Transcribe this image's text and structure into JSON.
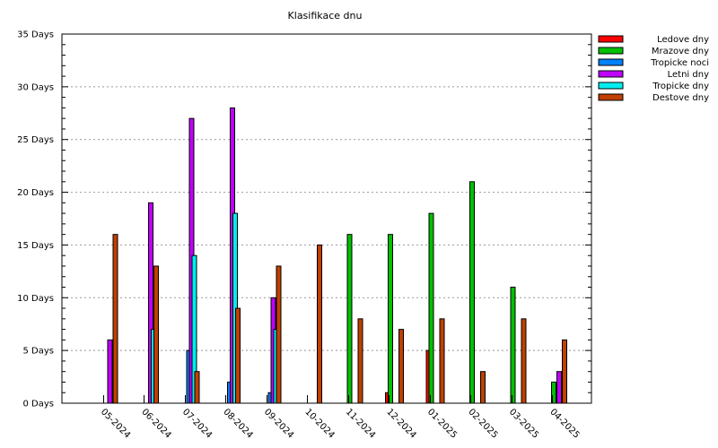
{
  "chart_data": {
    "type": "bar",
    "title": "Klasifikace dnu",
    "xlabel": "",
    "ylabel": "",
    "y_unit": "Days",
    "ylim": [
      0,
      35
    ],
    "yticks": [
      0,
      5,
      10,
      15,
      20,
      25,
      30,
      35
    ],
    "grid": "horizontal dotted",
    "legend_position": "top-right",
    "categories": [
      "05-2024",
      "06-2024",
      "07-2024",
      "08-2024",
      "09-2024",
      "10-2024",
      "11-2024",
      "12-2024",
      "01-2025",
      "02-2025",
      "03-2025",
      "04-2025"
    ],
    "series": [
      {
        "name": "Ledove dny",
        "color": "#ff0000",
        "values": [
          0,
          0,
          0,
          0,
          0,
          0,
          0,
          1,
          5,
          0,
          0,
          0
        ]
      },
      {
        "name": "Mrazove dny",
        "color": "#00c000",
        "values": [
          0,
          0,
          0,
          0,
          0,
          0,
          16,
          16,
          18,
          21,
          11,
          2
        ]
      },
      {
        "name": "Tropicke noci",
        "color": "#0080ff",
        "values": [
          0,
          0,
          5,
          2,
          1,
          0,
          0,
          0,
          0,
          0,
          0,
          0
        ]
      },
      {
        "name": "Letni dny",
        "color": "#c000ff",
        "values": [
          6,
          19,
          27,
          28,
          10,
          0,
          0,
          0,
          0,
          0,
          0,
          3
        ]
      },
      {
        "name": "Tropicke dny",
        "color": "#00eeee",
        "values": [
          0,
          7,
          14,
          18,
          7,
          0,
          0,
          0,
          0,
          0,
          0,
          0
        ]
      },
      {
        "name": "Destove dny",
        "color": "#c04000",
        "values": [
          16,
          13,
          3,
          9,
          13,
          15,
          8,
          7,
          8,
          3,
          8,
          6
        ]
      }
    ]
  }
}
